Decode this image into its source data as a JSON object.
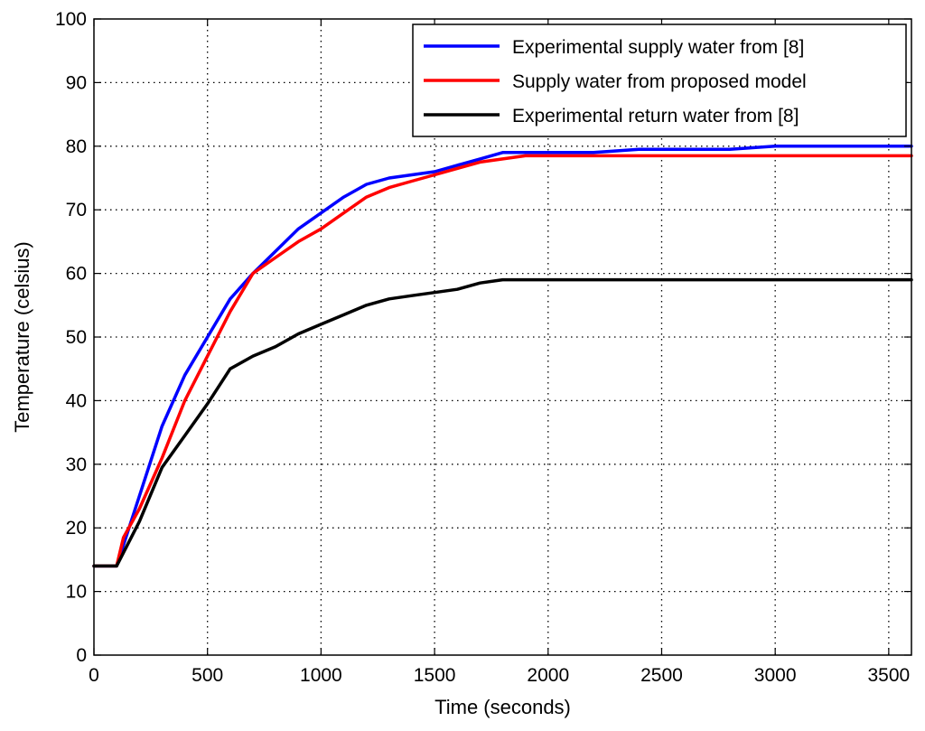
{
  "chart_data": {
    "type": "line",
    "title": "",
    "xlabel": "Time (seconds)",
    "ylabel": "Temperature (celsius)",
    "xlim": [
      0,
      3600
    ],
    "ylim": [
      0,
      100
    ],
    "xticks": [
      0,
      500,
      1000,
      1500,
      2000,
      2500,
      3000,
      3500
    ],
    "yticks": [
      0,
      10,
      20,
      30,
      40,
      50,
      60,
      70,
      80,
      90,
      100
    ],
    "grid": true,
    "legend_position": "top-right",
    "series": [
      {
        "name": "Experimental supply water from [8]",
        "color": "#0000ff",
        "x": [
          0,
          100,
          200,
          300,
          400,
          500,
          600,
          700,
          800,
          900,
          1000,
          1100,
          1200,
          1300,
          1400,
          1500,
          1600,
          1700,
          1800,
          1900,
          2000,
          2200,
          2400,
          2600,
          2800,
          3000,
          3200,
          3400,
          3600
        ],
        "y": [
          14,
          14,
          25,
          36,
          44,
          50,
          56,
          60,
          63.5,
          67,
          69.5,
          72,
          74,
          75,
          75.5,
          76,
          77,
          78,
          79,
          79,
          79,
          79,
          79.5,
          79.5,
          79.5,
          80,
          80,
          80,
          80
        ]
      },
      {
        "name": "Supply water from proposed model",
        "color": "#ff0000",
        "x": [
          0,
          100,
          130,
          200,
          300,
          400,
          500,
          600,
          700,
          800,
          900,
          1000,
          1100,
          1200,
          1300,
          1400,
          1500,
          1600,
          1700,
          1800,
          1900,
          2000,
          2200,
          2400,
          2600,
          2800,
          3000,
          3200,
          3400,
          3600
        ],
        "y": [
          14,
          14,
          18.5,
          23,
          31,
          40,
          47,
          54,
          60,
          62.5,
          65,
          67,
          69.5,
          72,
          73.5,
          74.5,
          75.5,
          76.5,
          77.5,
          78,
          78.5,
          78.5,
          78.5,
          78.5,
          78.5,
          78.5,
          78.5,
          78.5,
          78.5,
          78.5
        ]
      },
      {
        "name": "Experimental return water from [8]",
        "color": "#000000",
        "x": [
          0,
          100,
          200,
          300,
          400,
          500,
          600,
          700,
          800,
          900,
          1000,
          1100,
          1200,
          1300,
          1400,
          1500,
          1600,
          1700,
          1800,
          2000,
          2500,
          3000,
          3600
        ],
        "y": [
          14,
          14,
          21,
          29.5,
          34.5,
          39.5,
          45,
          47,
          48.5,
          50.5,
          52,
          53.5,
          55,
          56,
          56.5,
          57,
          57.5,
          58.5,
          59,
          59,
          59,
          59,
          59
        ]
      }
    ]
  }
}
